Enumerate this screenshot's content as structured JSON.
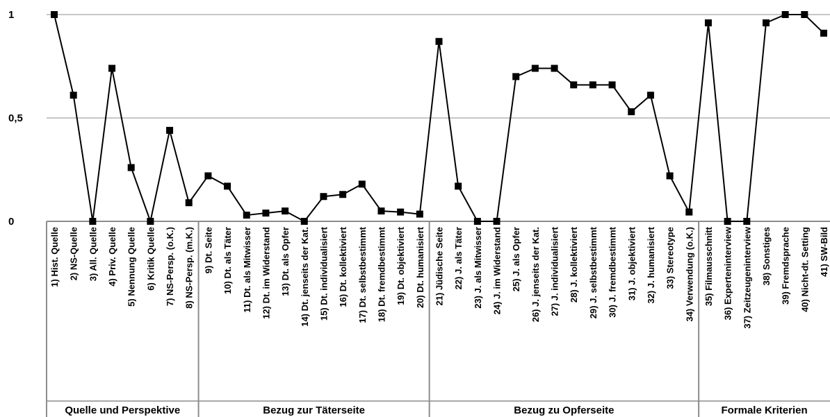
{
  "chart_data": {
    "type": "line",
    "ylim": [
      0,
      1
    ],
    "yticks": [
      {
        "value": 0,
        "label": "0"
      },
      {
        "value": 0.5,
        "label": "0,5"
      },
      {
        "value": 1,
        "label": "1"
      }
    ],
    "grid": true,
    "legend": "none",
    "categories": [
      "1) Hist. Quelle",
      "2) NS-Quelle",
      "3) All. Quelle",
      "4) Priv. Quelle",
      "5) Nennung Quelle",
      "6) Kritik Quelle",
      "7) NS-Persp. (o.K.)",
      "8) NS-Persp. (m.K.)",
      "9) Dt. Seite",
      "10) Dt. als Täter",
      "11) Dt. als Mitwisser",
      "12) Dt. im Widerstand",
      "13) Dt. als Opfer",
      "14) Dt. jenseits der Kat.",
      "15) Dt. individualisiert",
      "16) Dt. kollektiviert",
      "17) Dt. selbstbestimmt",
      "18) Dt. fremdbestimmt",
      "19) Dt. objektiviert",
      "20) Dt. humanisiert",
      "21) Jüdische Seite",
      "22) J. als Täter",
      "23) J. als Mitwisser",
      "24) J. im Widerstand",
      "25) J. als Opfer",
      "26) J. jenseits der Kat.",
      "27) J. individualisiert",
      "28) J. kollektiviert",
      "29) J. selbstbestimmt",
      "30) J. fremdbestimmt",
      "31) J. objektiviert",
      "32) J. humanisiert",
      "33) Stereotype",
      "34) Verwendung (o.K.)",
      "35) Filmausschnitt",
      "36) Experteninterview",
      "37) Zeitzeugeninterview",
      "38) Sonstiges",
      "39) Fremdsprache",
      "40) Nicht-dt. Setting",
      "41) SW-Bild"
    ],
    "series": [
      {
        "values": [
          1.0,
          0.61,
          0.0,
          0.74,
          0.26,
          0.0,
          0.44,
          0.09,
          0.22,
          0.17,
          0.03,
          0.04,
          0.05,
          0.0,
          0.12,
          0.13,
          0.18,
          0.05,
          0.045,
          0.035,
          0.87,
          0.17,
          0.0,
          0.0,
          0.7,
          0.74,
          0.74,
          0.66,
          0.66,
          0.66,
          0.53,
          0.61,
          0.22,
          0.045,
          0.96,
          0.0,
          0.0,
          0.96,
          1.0,
          1.0,
          0.91
        ],
        "color": "#000000"
      }
    ],
    "groups": [
      {
        "label": "Quelle und Perspektive",
        "start": 1,
        "end": 8
      },
      {
        "label": "Bezug zur Täterseite",
        "start": 9,
        "end": 20
      },
      {
        "label": "Bezug zu Opferseite",
        "start": 21,
        "end": 34
      },
      {
        "label": "Formale Kriterien",
        "start": 35,
        "end": 41
      }
    ]
  }
}
